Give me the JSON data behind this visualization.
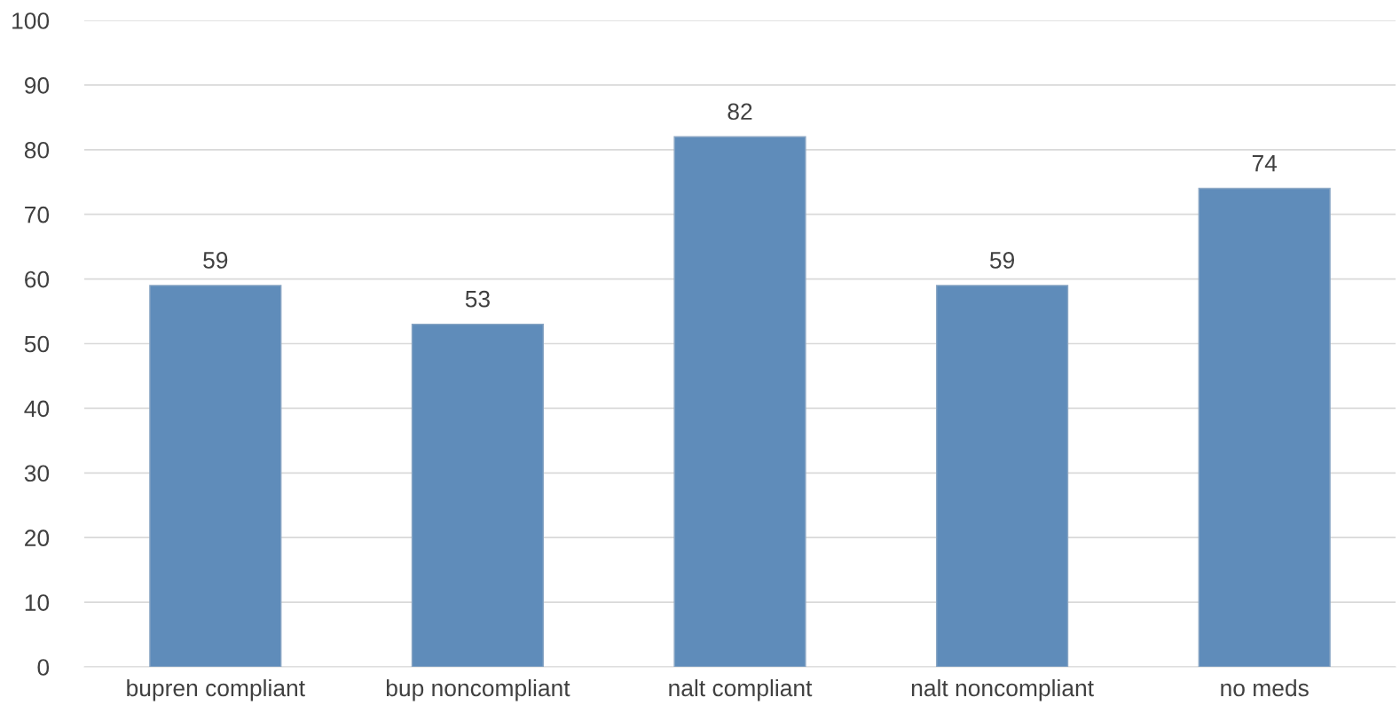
{
  "chart_data": {
    "type": "bar",
    "categories": [
      "bupren compliant",
      "bup noncompliant",
      "nalt compliant",
      "nalt noncompliant",
      "no meds"
    ],
    "values": [
      59,
      53,
      82,
      59,
      74
    ],
    "color": "#5f8cba",
    "ylim": [
      0,
      100
    ],
    "yticks": [
      0,
      10,
      20,
      30,
      40,
      50,
      60,
      70,
      80,
      90,
      100
    ],
    "grid": "y",
    "data_labels": true
  }
}
